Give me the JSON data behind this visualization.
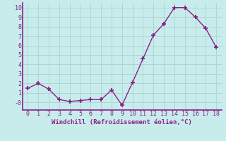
{
  "x": [
    0,
    1,
    2,
    3,
    4,
    5,
    6,
    7,
    8,
    9,
    10,
    11,
    12,
    13,
    14,
    15,
    16,
    17,
    18
  ],
  "y": [
    1.5,
    2.0,
    1.4,
    0.3,
    0.1,
    0.2,
    0.3,
    0.3,
    1.3,
    -0.3,
    2.1,
    4.6,
    7.1,
    8.3,
    10.0,
    10.0,
    9.0,
    7.8,
    5.8
  ],
  "line_color": "#882288",
  "marker": "+",
  "marker_color": "#882288",
  "xlabel": "Windchill (Refroidissement éolien,°C)",
  "ylim": [
    -0.8,
    10.5
  ],
  "xlim": [
    -0.5,
    18.5
  ],
  "yticks": [
    0,
    1,
    2,
    3,
    4,
    5,
    6,
    7,
    8,
    9,
    10
  ],
  "ytick_labels": [
    "-0",
    "1",
    "2",
    "3",
    "4",
    "5",
    "6",
    "7",
    "8",
    "9",
    "10"
  ],
  "xticks": [
    0,
    1,
    2,
    3,
    4,
    5,
    6,
    7,
    8,
    9,
    10,
    11,
    12,
    13,
    14,
    15,
    16,
    17,
    18
  ],
  "bg_color": "#c8ecec",
  "grid_color": "#a8d4d4",
  "font_color": "#882288",
  "font_family": "monospace",
  "xlabel_fontsize": 6.5,
  "tick_fontsize": 6.0
}
